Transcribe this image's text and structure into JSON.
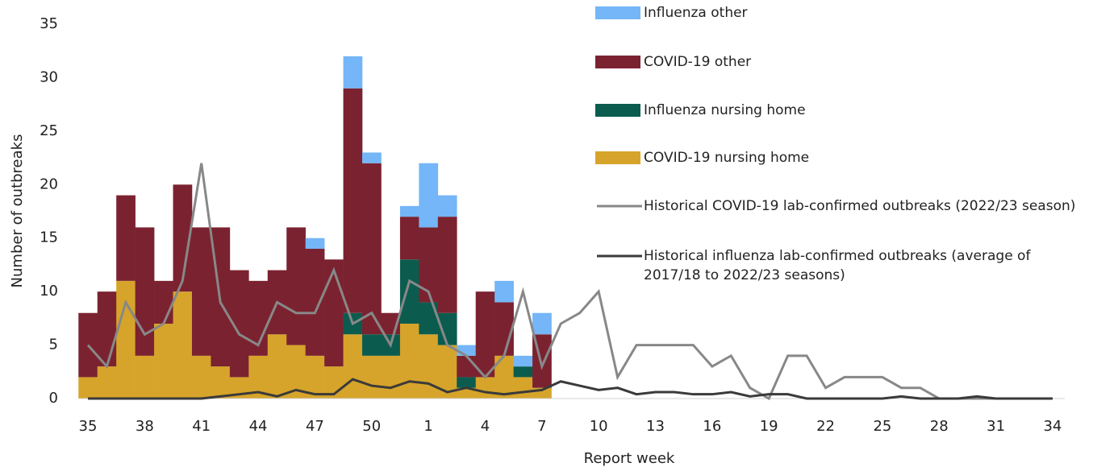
{
  "chart_data": {
    "type": "bar",
    "x_label": "Report week",
    "y_label": "Number of outbreaks",
    "categories": [
      "35",
      null,
      null,
      "38",
      null,
      null,
      "41",
      null,
      null,
      "44",
      null,
      null,
      "47",
      null,
      null,
      "50",
      null,
      null,
      "1",
      null,
      null,
      "4",
      null,
      null,
      "7",
      null,
      null,
      "10",
      null,
      null,
      "13",
      null,
      null,
      "16",
      null,
      null,
      "19",
      null,
      null,
      "22",
      null,
      null,
      "25",
      null,
      null,
      "28",
      null,
      null,
      "31",
      null,
      null,
      "34"
    ],
    "ylim": [
      0,
      35
    ],
    "yticks": [
      0,
      5,
      10,
      15,
      20,
      25,
      30,
      35
    ],
    "grid": false,
    "legend": "top-right",
    "series": [
      {
        "name": "Influenza other",
        "type": "bar",
        "color": "#74b6f7",
        "values": [
          0,
          0,
          0,
          0,
          0,
          0,
          0,
          0,
          0,
          0,
          0,
          0,
          1,
          0,
          3,
          1,
          0,
          1,
          6,
          2,
          1,
          0,
          2,
          1,
          2,
          null,
          null,
          null,
          null,
          null,
          null,
          null,
          null,
          null,
          null,
          null,
          null,
          null,
          null,
          null,
          null,
          null,
          null,
          null,
          null,
          null,
          null,
          null,
          null,
          null,
          null,
          null
        ]
      },
      {
        "name": "COVID-19 other",
        "type": "bar",
        "color": "#7b2230",
        "values": [
          6,
          7,
          8,
          12,
          4,
          10,
          12,
          13,
          10,
          7,
          6,
          11,
          10,
          10,
          21,
          16,
          2,
          4,
          7,
          9,
          2,
          8,
          5,
          0,
          5,
          null,
          null,
          null,
          null,
          null,
          null,
          null,
          null,
          null,
          null,
          null,
          null,
          null,
          null,
          null,
          null,
          null,
          null,
          null,
          null,
          null,
          null,
          null,
          null,
          null,
          null,
          null
        ]
      },
      {
        "name": "Influenza nursing home",
        "type": "bar",
        "color": "#0b5c4f",
        "values": [
          0,
          0,
          0,
          0,
          0,
          0,
          0,
          0,
          0,
          0,
          0,
          0,
          0,
          0,
          2,
          2,
          2,
          6,
          3,
          3,
          1,
          0,
          0,
          1,
          0,
          null,
          null,
          null,
          null,
          null,
          null,
          null,
          null,
          null,
          null,
          null,
          null,
          null,
          null,
          null,
          null,
          null,
          null,
          null,
          null,
          null,
          null,
          null,
          null,
          null,
          null,
          null
        ]
      },
      {
        "name": "COVID-19 nursing home",
        "type": "bar",
        "color": "#d6a42a",
        "values": [
          2,
          3,
          11,
          4,
          7,
          10,
          4,
          3,
          2,
          4,
          6,
          5,
          4,
          3,
          6,
          4,
          4,
          7,
          6,
          5,
          1,
          2,
          4,
          2,
          1,
          null,
          null,
          null,
          null,
          null,
          null,
          null,
          null,
          null,
          null,
          null,
          null,
          null,
          null,
          null,
          null,
          null,
          null,
          null,
          null,
          null,
          null,
          null,
          null,
          null,
          null,
          null
        ]
      },
      {
        "name": "Historical COVID-19 lab-confirmed outbreaks (2022/23 season)",
        "type": "line",
        "color": "#888888",
        "values": [
          5,
          3,
          9,
          6,
          7,
          11,
          22,
          9,
          6,
          5,
          9,
          8,
          8,
          12,
          7,
          8,
          5,
          11,
          10,
          5,
          4,
          2,
          4,
          10,
          3,
          7,
          8,
          10,
          2,
          5,
          5,
          5,
          5,
          3,
          4,
          1,
          0,
          4,
          4,
          1,
          2,
          2,
          2,
          1,
          1,
          0,
          0,
          0,
          0,
          0,
          0,
          0
        ]
      },
      {
        "name": "Historical influenza lab-confirmed outbreaks (average of 2017/18 to 2022/23 seasons)",
        "type": "line",
        "color": "#3a3a3a",
        "values": [
          0,
          0,
          0,
          0,
          0,
          0,
          0,
          0.2,
          0.4,
          0.6,
          0.2,
          0.8,
          0.4,
          0.4,
          1.8,
          1.2,
          1.0,
          1.6,
          1.4,
          0.6,
          1.0,
          0.6,
          0.4,
          0.6,
          0.8,
          1.6,
          1.2,
          0.8,
          1.0,
          0.4,
          0.6,
          0.6,
          0.4,
          0.4,
          0.6,
          0.2,
          0.4,
          0.4,
          0,
          0,
          0,
          0,
          0,
          0.2,
          0,
          0,
          0,
          0.2,
          0,
          0,
          0,
          0
        ]
      }
    ]
  }
}
